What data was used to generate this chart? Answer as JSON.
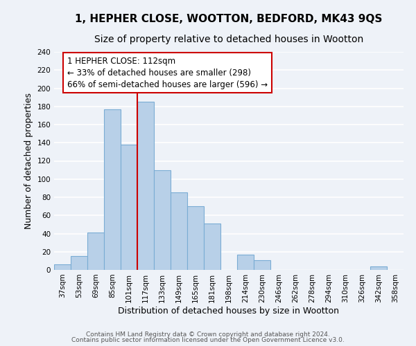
{
  "title": "1, HEPHER CLOSE, WOOTTON, BEDFORD, MK43 9QS",
  "subtitle": "Size of property relative to detached houses in Wootton",
  "xlabel": "Distribution of detached houses by size in Wootton",
  "ylabel": "Number of detached properties",
  "footer_lines": [
    "Contains HM Land Registry data © Crown copyright and database right 2024.",
    "Contains public sector information licensed under the Open Government Licence v3.0."
  ],
  "bin_labels": [
    "37sqm",
    "53sqm",
    "69sqm",
    "85sqm",
    "101sqm",
    "117sqm",
    "133sqm",
    "149sqm",
    "165sqm",
    "181sqm",
    "198sqm",
    "214sqm",
    "230sqm",
    "246sqm",
    "262sqm",
    "278sqm",
    "294sqm",
    "310sqm",
    "326sqm",
    "342sqm",
    "358sqm"
  ],
  "bar_values": [
    6,
    15,
    41,
    177,
    138,
    185,
    110,
    85,
    70,
    51,
    0,
    17,
    11,
    0,
    0,
    0,
    0,
    0,
    0,
    4,
    0
  ],
  "bar_color": "#b8d0e8",
  "bar_edge_color": "#7aacd4",
  "vline_bin_index": 5,
  "annotation_box_text": "1 HEPHER CLOSE: 112sqm\n← 33% of detached houses are smaller (298)\n66% of semi-detached houses are larger (596) →",
  "annotation_box_facecolor": "white",
  "annotation_box_edgecolor": "#cc0000",
  "vline_color": "#cc0000",
  "ylim": [
    0,
    240
  ],
  "yticks": [
    0,
    20,
    40,
    60,
    80,
    100,
    120,
    140,
    160,
    180,
    200,
    220,
    240
  ],
  "background_color": "#eef2f8",
  "grid_color": "white",
  "title_fontsize": 11,
  "subtitle_fontsize": 10,
  "axis_label_fontsize": 9,
  "tick_fontsize": 7.5,
  "annotation_fontsize": 8.5,
  "footer_fontsize": 6.5
}
